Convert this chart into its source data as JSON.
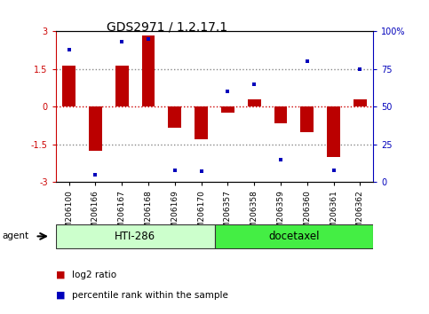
{
  "title": "GDS2971 / 1.2.17.1",
  "samples": [
    "GSM206100",
    "GSM206166",
    "GSM206167",
    "GSM206168",
    "GSM206169",
    "GSM206170",
    "GSM206357",
    "GSM206358",
    "GSM206359",
    "GSM206360",
    "GSM206361",
    "GSM206362"
  ],
  "log2_ratios": [
    1.65,
    -1.75,
    1.65,
    2.85,
    -0.85,
    -1.3,
    -0.25,
    0.3,
    -0.65,
    -1.0,
    -2.0,
    0.3
  ],
  "percentile_ranks": [
    88,
    5,
    93,
    95,
    8,
    7,
    60,
    65,
    15,
    80,
    8,
    75
  ],
  "bar_color": "#bb0000",
  "dot_color": "#0000bb",
  "groups": [
    {
      "label": "HTI-286",
      "start": 0,
      "end": 6,
      "color": "#ccffcc"
    },
    {
      "label": "docetaxel",
      "start": 6,
      "end": 12,
      "color": "#44ee44"
    }
  ],
  "ylim_left": [
    -3,
    3
  ],
  "ylim_right": [
    0,
    100
  ],
  "yticks_left": [
    -3,
    -1.5,
    0,
    1.5,
    3
  ],
  "yticks_right": [
    0,
    25,
    50,
    75,
    100
  ],
  "hlines_dotted": [
    -1.5,
    1.5
  ],
  "hline_zero_color": "#cc0000",
  "agent_label": "agent",
  "legend_items": [
    {
      "label": "log2 ratio",
      "color": "#bb0000"
    },
    {
      "label": "percentile rank within the sample",
      "color": "#0000bb"
    }
  ],
  "background_color": "#ffffff",
  "right_axis_color": "#0000bb",
  "title_fontsize": 10,
  "tick_fontsize": 7,
  "bar_width": 0.5
}
